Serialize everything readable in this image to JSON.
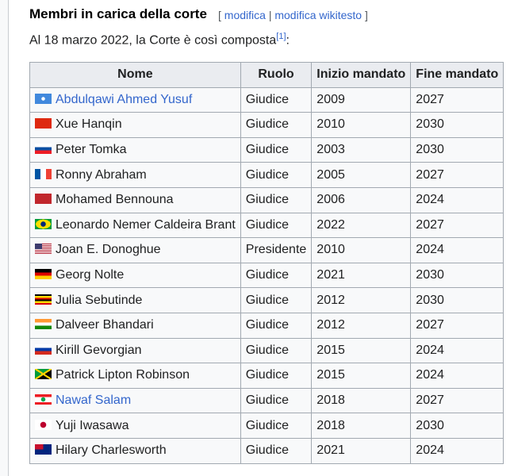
{
  "section": {
    "title": "Membri in carica della corte",
    "edit_open": "[",
    "edit_label": "modifica",
    "edit_sep": "|",
    "edit_source_label": "modifica wikitesto",
    "edit_close": "]"
  },
  "intro": {
    "text": "Al 18 marzo 2022, la Corte è così composta",
    "ref": "[1]",
    "suffix": ":"
  },
  "table": {
    "headers": [
      "Nome",
      "Ruolo",
      "Inizio mandato",
      "Fine mandato"
    ],
    "rows": [
      {
        "flag": "somalia",
        "name": "Abdulqawi Ahmed Yusuf",
        "link": true,
        "role": "Giudice",
        "start": "2009",
        "end": "2027"
      },
      {
        "flag": "china",
        "name": "Xue Hanqin",
        "link": false,
        "role": "Giudice",
        "start": "2010",
        "end": "2030"
      },
      {
        "flag": "slovakia",
        "name": "Peter Tomka",
        "link": false,
        "role": "Giudice",
        "start": "2003",
        "end": "2030"
      },
      {
        "flag": "france",
        "name": "Ronny Abraham",
        "link": false,
        "role": "Giudice",
        "start": "2005",
        "end": "2027"
      },
      {
        "flag": "morocco",
        "name": "Mohamed Bennouna",
        "link": false,
        "role": "Giudice",
        "start": "2006",
        "end": "2024"
      },
      {
        "flag": "brazil",
        "name": "Leonardo Nemer Caldeira Brant",
        "link": false,
        "role": "Giudice",
        "start": "2022",
        "end": "2027"
      },
      {
        "flag": "usa",
        "name": "Joan E. Donoghue",
        "link": false,
        "role": "Presidente",
        "start": "2010",
        "end": "2024"
      },
      {
        "flag": "germany",
        "name": "Georg Nolte",
        "link": false,
        "role": "Giudice",
        "start": "2021",
        "end": "2030"
      },
      {
        "flag": "uganda",
        "name": "Julia Sebutinde",
        "link": false,
        "role": "Giudice",
        "start": "2012",
        "end": "2030"
      },
      {
        "flag": "india",
        "name": "Dalveer Bhandari",
        "link": false,
        "role": "Giudice",
        "start": "2012",
        "end": "2027"
      },
      {
        "flag": "russia",
        "name": "Kirill Gevorgian",
        "link": false,
        "role": "Giudice",
        "start": "2015",
        "end": "2024"
      },
      {
        "flag": "jamaica",
        "name": "Patrick Lipton Robinson",
        "link": false,
        "role": "Giudice",
        "start": "2015",
        "end": "2024"
      },
      {
        "flag": "lebanon",
        "name": "Nawaf Salam",
        "link": true,
        "role": "Giudice",
        "start": "2018",
        "end": "2027"
      },
      {
        "flag": "japan",
        "name": "Yuji Iwasawa",
        "link": false,
        "role": "Giudice",
        "start": "2018",
        "end": "2030"
      },
      {
        "flag": "australia",
        "name": "Hilary Charlesworth",
        "link": false,
        "role": "Giudice",
        "start": "2021",
        "end": "2024"
      }
    ]
  }
}
